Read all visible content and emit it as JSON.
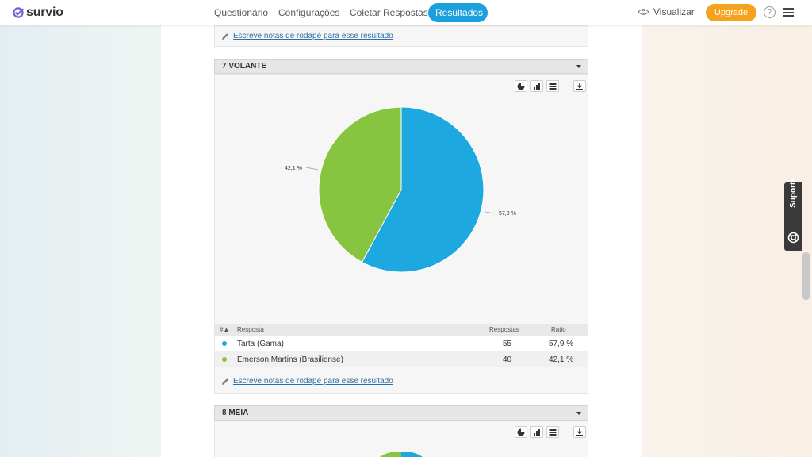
{
  "brand": {
    "name": "survio",
    "accent": "#7b5cd6"
  },
  "nav": {
    "tabs": [
      {
        "label": "Questionário"
      },
      {
        "label": "Configurações"
      },
      {
        "label": "Coletar Respostas"
      },
      {
        "label": "Resultados",
        "active": true
      }
    ],
    "preview_label": "Visualizar",
    "upgrade_label": "Upgrade",
    "help_icon": "question-circle-icon",
    "menu_icon": "hamburger-icon"
  },
  "prev_card": {
    "note_label": "Escreve notas de rodapé para esse resultado"
  },
  "question7": {
    "title": "7 VOLANTE",
    "tools": [
      "pie-chart-icon",
      "bar-chart-icon",
      "table-icon",
      "download-icon"
    ],
    "table": {
      "headers": {
        "num": "#",
        "answer": "Resposta",
        "responses": "Respostas",
        "ratio": "Ratio"
      },
      "rows": [
        {
          "answer": "Tarta (Gama)",
          "responses": "55",
          "ratio": "57,9 %",
          "color": "#1da8e0"
        },
        {
          "answer": "Emerson Martins (Brasiliense)",
          "responses": "40",
          "ratio": "42,1 %",
          "color": "#87c540"
        }
      ]
    },
    "note_label": "Escreve notas de rodapé para esse resultado"
  },
  "question8": {
    "title": "8 MEIA",
    "tools": [
      "pie-chart-icon",
      "bar-chart-icon",
      "table-icon",
      "download-icon"
    ]
  },
  "support": {
    "label": "Suporte",
    "icon": "lifebuoy-icon"
  },
  "chart_data": {
    "type": "pie",
    "categories": [
      "Tarta (Gama)",
      "Emerson Martins (Brasiliense)"
    ],
    "values": [
      57.9,
      42.1
    ],
    "labels": [
      "57,9 %",
      "42,1 %"
    ],
    "colors": [
      "#1da8e0",
      "#87c540"
    ]
  }
}
